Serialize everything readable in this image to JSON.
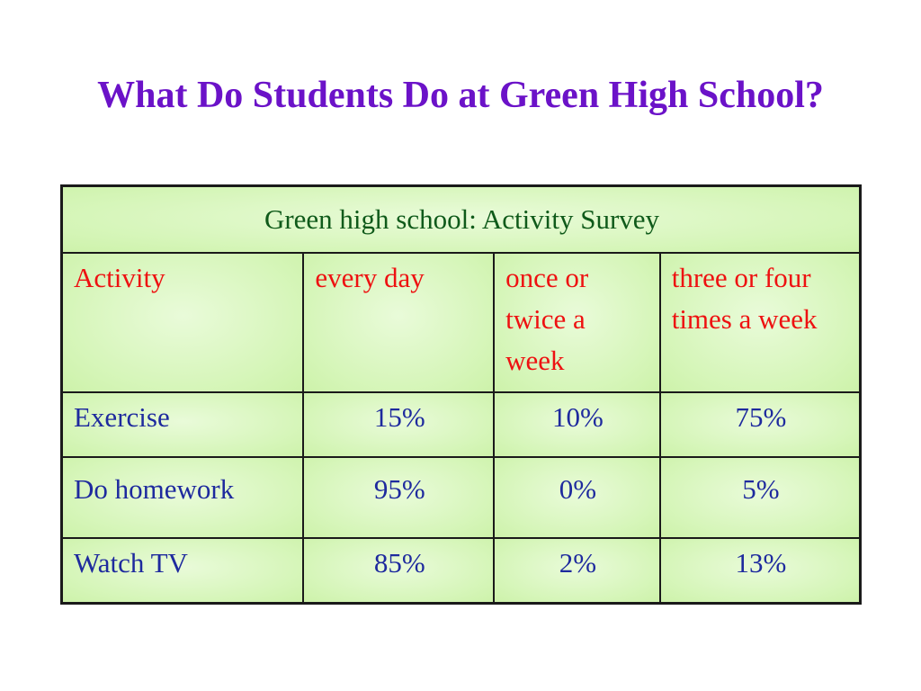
{
  "title": "What Do Students Do at Green High School?",
  "table": {
    "caption": "Green high school: Activity Survey",
    "headers": [
      "Activity",
      "every day",
      "once or twice a week",
      "three or four times a week"
    ],
    "rows": [
      {
        "activity": "Exercise",
        "values": [
          "15%",
          "10%",
          "75%"
        ]
      },
      {
        "activity": "Do homework",
        "values": [
          "95%",
          "0%",
          "5%"
        ]
      },
      {
        "activity": "Watch TV",
        "values": [
          "85%",
          "2%",
          "13%"
        ]
      }
    ]
  },
  "colors": {
    "title": "#6b12c8",
    "caption": "#0f5a1a",
    "header": "#ee1111",
    "body": "#1e2a9e",
    "cell_background": "#d4f5b6"
  }
}
